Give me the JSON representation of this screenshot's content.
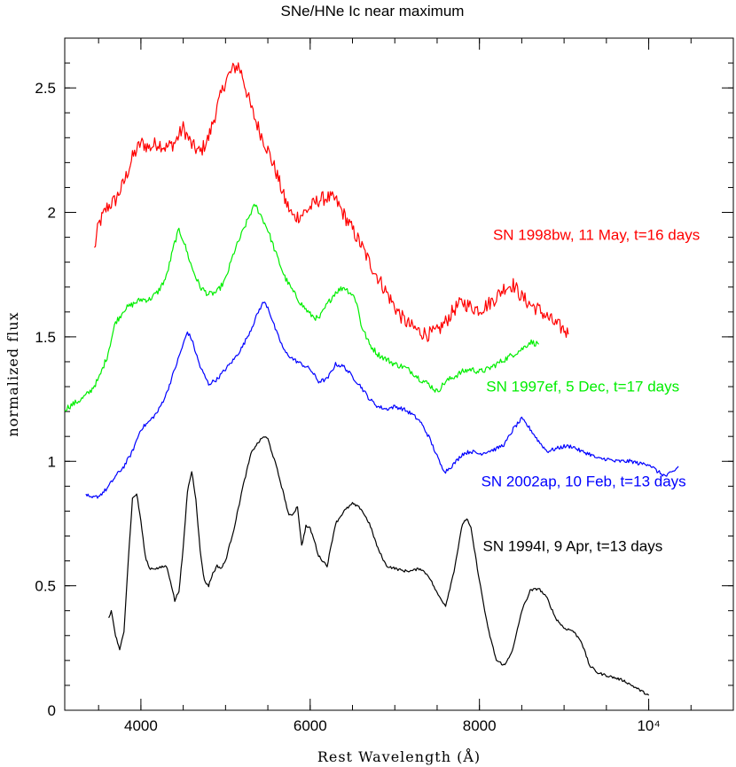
{
  "chart_data": {
    "type": "line",
    "title": "SNe/HNe Ic near maximum",
    "xlabel": "Rest Wavelength (Å)",
    "ylabel": "normalized flux",
    "xlim": [
      3100,
      11000
    ],
    "ylim": [
      0,
      2.7
    ],
    "x_ticks": [
      {
        "value": 4000,
        "label": "4000"
      },
      {
        "value": 6000,
        "label": "6000"
      },
      {
        "value": 8000,
        "label": "8000"
      },
      {
        "value": 10000,
        "label": "10⁴"
      }
    ],
    "x_minor_step": 500,
    "y_ticks": [
      {
        "value": 0,
        "label": "0"
      },
      {
        "value": 0.5,
        "label": "0.5"
      },
      {
        "value": 1,
        "label": "1"
      },
      {
        "value": 1.5,
        "label": "1.5"
      },
      {
        "value": 2,
        "label": "2"
      },
      {
        "value": 2.5,
        "label": "2.5"
      }
    ],
    "y_minor_step": 0.1,
    "series": [
      {
        "name": "SN 1998bw, 11 May, t=16 days",
        "color": "#ff0000",
        "noise": 0.03,
        "x": [
          3450,
          3500,
          3600,
          3700,
          3800,
          3900,
          4000,
          4100,
          4200,
          4300,
          4400,
          4500,
          4600,
          4700,
          4800,
          4900,
          5000,
          5100,
          5150,
          5200,
          5300,
          5400,
          5500,
          5600,
          5700,
          5800,
          5900,
          6000,
          6100,
          6200,
          6300,
          6400,
          6500,
          6600,
          6700,
          6800,
          6900,
          7000,
          7100,
          7200,
          7300,
          7400,
          7500,
          7600,
          7700,
          7800,
          7900,
          8000,
          8100,
          8200,
          8300,
          8400,
          8500,
          8600,
          8700,
          8800,
          8900,
          9000,
          9050
        ],
        "y": [
          1.85,
          1.95,
          2.02,
          2.05,
          2.12,
          2.22,
          2.28,
          2.26,
          2.28,
          2.26,
          2.28,
          2.34,
          2.27,
          2.24,
          2.3,
          2.42,
          2.53,
          2.58,
          2.59,
          2.55,
          2.42,
          2.33,
          2.25,
          2.16,
          2.05,
          1.98,
          1.99,
          2.02,
          2.05,
          2.06,
          2.05,
          1.99,
          1.93,
          1.87,
          1.8,
          1.74,
          1.68,
          1.62,
          1.57,
          1.54,
          1.52,
          1.51,
          1.52,
          1.56,
          1.61,
          1.64,
          1.62,
          1.61,
          1.63,
          1.66,
          1.7,
          1.71,
          1.66,
          1.63,
          1.61,
          1.58,
          1.55,
          1.53,
          1.51
        ]
      },
      {
        "name": "SN 1997ef, 5 Dec, t=17 days",
        "color": "#00ee00",
        "noise": 0.012,
        "x": [
          3100,
          3200,
          3300,
          3400,
          3500,
          3600,
          3700,
          3750,
          3800,
          3900,
          4000,
          4100,
          4200,
          4300,
          4400,
          4450,
          4500,
          4600,
          4700,
          4800,
          4900,
          5000,
          5100,
          5200,
          5300,
          5350,
          5400,
          5500,
          5600,
          5700,
          5800,
          5900,
          6000,
          6100,
          6200,
          6300,
          6400,
          6500,
          6550,
          6600,
          6700,
          6800,
          6900,
          7000,
          7100,
          7200,
          7300,
          7400,
          7500,
          7600,
          7700,
          7800,
          7900,
          8000,
          8100,
          8200,
          8300,
          8400,
          8500,
          8600,
          8700
        ],
        "y": [
          1.21,
          1.23,
          1.25,
          1.28,
          1.33,
          1.42,
          1.56,
          1.58,
          1.61,
          1.63,
          1.65,
          1.65,
          1.68,
          1.74,
          1.88,
          1.93,
          1.89,
          1.78,
          1.7,
          1.67,
          1.68,
          1.73,
          1.84,
          1.92,
          2.0,
          2.03,
          2.0,
          1.93,
          1.83,
          1.74,
          1.68,
          1.63,
          1.59,
          1.57,
          1.63,
          1.68,
          1.7,
          1.67,
          1.64,
          1.55,
          1.47,
          1.43,
          1.41,
          1.39,
          1.38,
          1.36,
          1.33,
          1.31,
          1.28,
          1.32,
          1.34,
          1.36,
          1.37,
          1.36,
          1.37,
          1.39,
          1.41,
          1.43,
          1.45,
          1.48,
          1.47
        ]
      },
      {
        "name": "SN 2002ap, 10 Feb, t=13 days",
        "color": "#0000ff",
        "noise": 0.008,
        "x": [
          3350,
          3400,
          3500,
          3600,
          3700,
          3800,
          3900,
          4000,
          4100,
          4200,
          4300,
          4400,
          4500,
          4550,
          4600,
          4700,
          4800,
          4900,
          5000,
          5100,
          5200,
          5300,
          5400,
          5450,
          5500,
          5600,
          5700,
          5800,
          5900,
          6000,
          6100,
          6200,
          6300,
          6400,
          6500,
          6600,
          6700,
          6800,
          6900,
          7000,
          7100,
          7200,
          7300,
          7400,
          7500,
          7550,
          7600,
          7700,
          7800,
          7900,
          8000,
          8100,
          8200,
          8300,
          8400,
          8500,
          8600,
          8700,
          8800,
          8900,
          9000,
          9100,
          9200,
          9300,
          9400,
          9500,
          9600,
          9700,
          9800,
          9900,
          10000,
          10100,
          10200,
          10300,
          10350
        ],
        "y": [
          0.87,
          0.85,
          0.86,
          0.89,
          0.94,
          0.98,
          1.04,
          1.13,
          1.16,
          1.2,
          1.27,
          1.37,
          1.47,
          1.52,
          1.49,
          1.38,
          1.31,
          1.33,
          1.37,
          1.41,
          1.46,
          1.53,
          1.61,
          1.64,
          1.62,
          1.52,
          1.44,
          1.41,
          1.39,
          1.37,
          1.32,
          1.33,
          1.39,
          1.38,
          1.34,
          1.3,
          1.25,
          1.22,
          1.21,
          1.22,
          1.21,
          1.19,
          1.16,
          1.1,
          1.02,
          0.98,
          0.96,
          0.99,
          1.03,
          1.04,
          1.03,
          1.04,
          1.05,
          1.07,
          1.13,
          1.17,
          1.13,
          1.08,
          1.04,
          1.05,
          1.06,
          1.06,
          1.04,
          1.03,
          1.01,
          1.01,
          1.0,
          1.0,
          1.0,
          0.99,
          0.99,
          0.96,
          0.94,
          0.96,
          0.98
        ]
      },
      {
        "name": "SN 1994I, 9 Apr, t=13 days",
        "color": "#000000",
        "noise": 0.005,
        "x": [
          3620,
          3650,
          3700,
          3750,
          3800,
          3850,
          3900,
          3950,
          4000,
          4050,
          4100,
          4200,
          4300,
          4350,
          4400,
          4450,
          4500,
          4550,
          4600,
          4650,
          4700,
          4750,
          4800,
          4850,
          4900,
          4950,
          5000,
          5100,
          5200,
          5300,
          5350,
          5400,
          5450,
          5500,
          5600,
          5700,
          5750,
          5800,
          5850,
          5900,
          5950,
          6000,
          6050,
          6100,
          6200,
          6300,
          6400,
          6500,
          6600,
          6700,
          6800,
          6900,
          7000,
          7100,
          7200,
          7300,
          7400,
          7500,
          7600,
          7700,
          7800,
          7850,
          7900,
          8000,
          8100,
          8200,
          8300,
          8400,
          8500,
          8600,
          8700,
          8800,
          8900,
          9000,
          9100,
          9200,
          9300,
          9400,
          9500,
          9600,
          9700,
          9800,
          9900,
          10000
        ],
        "y": [
          0.37,
          0.4,
          0.3,
          0.24,
          0.32,
          0.6,
          0.85,
          0.87,
          0.76,
          0.62,
          0.57,
          0.57,
          0.58,
          0.52,
          0.44,
          0.48,
          0.65,
          0.88,
          0.96,
          0.85,
          0.64,
          0.52,
          0.5,
          0.55,
          0.58,
          0.57,
          0.6,
          0.73,
          0.89,
          1.03,
          1.06,
          1.08,
          1.1,
          1.09,
          0.98,
          0.85,
          0.78,
          0.79,
          0.82,
          0.66,
          0.74,
          0.73,
          0.68,
          0.62,
          0.58,
          0.75,
          0.8,
          0.83,
          0.81,
          0.75,
          0.65,
          0.58,
          0.57,
          0.56,
          0.56,
          0.57,
          0.54,
          0.47,
          0.42,
          0.56,
          0.75,
          0.77,
          0.73,
          0.52,
          0.33,
          0.2,
          0.18,
          0.25,
          0.4,
          0.48,
          0.49,
          0.45,
          0.37,
          0.33,
          0.32,
          0.28,
          0.18,
          0.15,
          0.14,
          0.13,
          0.12,
          0.1,
          0.08,
          0.06
        ]
      }
    ],
    "annotations": [
      {
        "text": "SN 1998bw, 11 May, t=16 days",
        "color": "#ff0000",
        "x": 8160,
        "y": 1.89
      },
      {
        "text": "SN 1997ef, 5 Dec, t=17 days",
        "color": "#00ee00",
        "x": 8080,
        "y": 1.28
      },
      {
        "text": "SN 2002ap, 10 Feb, t=13 days",
        "color": "#0000ff",
        "x": 8020,
        "y": 0.9
      },
      {
        "text": "SN 1994I, 9 Apr, t=13 days",
        "color": "#000000",
        "x": 8040,
        "y": 0.64
      }
    ],
    "grid": false,
    "legend": "none"
  }
}
